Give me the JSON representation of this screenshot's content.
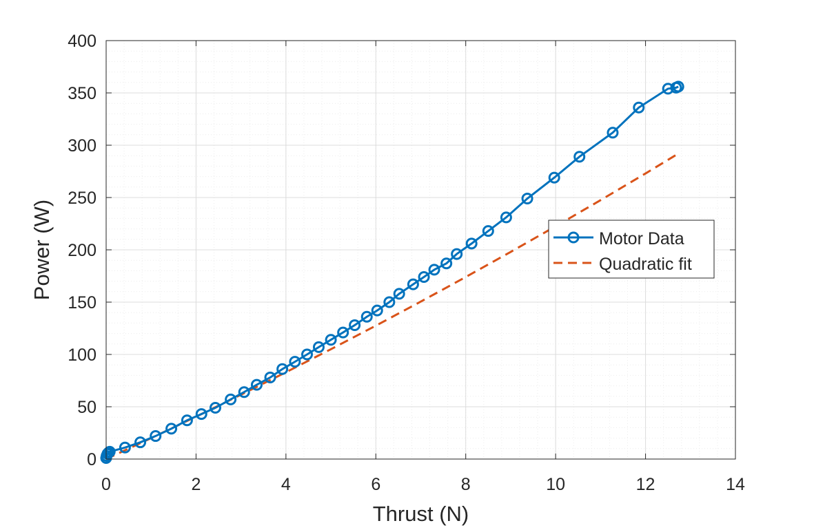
{
  "chart_data": {
    "type": "line",
    "xlabel": "Thrust (N)",
    "ylabel": "Power (W)",
    "xlim": [
      0,
      14
    ],
    "ylim": [
      0,
      400
    ],
    "xticks": [
      "0",
      "2",
      "4",
      "6",
      "8",
      "10",
      "12",
      "14"
    ],
    "yticks": [
      "0",
      "50",
      "100",
      "150",
      "200",
      "250",
      "300",
      "350",
      "400"
    ],
    "grid": "on (major and minor)",
    "legend_position": "right-center",
    "series": [
      {
        "name": "Motor Data",
        "style": "solid line with circle markers",
        "color": "#0072BD",
        "x": [
          0,
          0.01,
          0.03,
          0.05,
          0.08,
          0.42,
          0.76,
          1.1,
          1.45,
          1.8,
          2.12,
          2.43,
          2.77,
          3.07,
          3.35,
          3.65,
          3.92,
          4.2,
          4.47,
          4.73,
          5.0,
          5.27,
          5.53,
          5.8,
          6.03,
          6.3,
          6.52,
          6.83,
          7.07,
          7.3,
          7.57,
          7.8,
          8.13,
          8.5,
          8.9,
          9.37,
          9.97,
          10.53,
          11.27,
          11.85,
          12.5,
          12.68,
          12.73
        ],
        "y": [
          1,
          3,
          5,
          6,
          7,
          11,
          16,
          22,
          29,
          37,
          43,
          49,
          57,
          64,
          71,
          78,
          86,
          93,
          100,
          107,
          114,
          121,
          128,
          136,
          142,
          150,
          158,
          167,
          174,
          181,
          187,
          196,
          206,
          218,
          231,
          249,
          269,
          289,
          312,
          336,
          354,
          355,
          356
        ]
      },
      {
        "name": "Quadratic fit",
        "style": "dashed line",
        "color": "#D95319",
        "x": [
          0,
          1,
          2,
          3,
          4,
          5,
          6,
          7,
          8,
          9,
          10,
          11,
          12,
          12.73
        ],
        "y": [
          0,
          20,
          40.5,
          61.5,
          83,
          105,
          127.5,
          150.5,
          174,
          198,
          222.5,
          247.5,
          273,
          292
        ]
      }
    ]
  }
}
